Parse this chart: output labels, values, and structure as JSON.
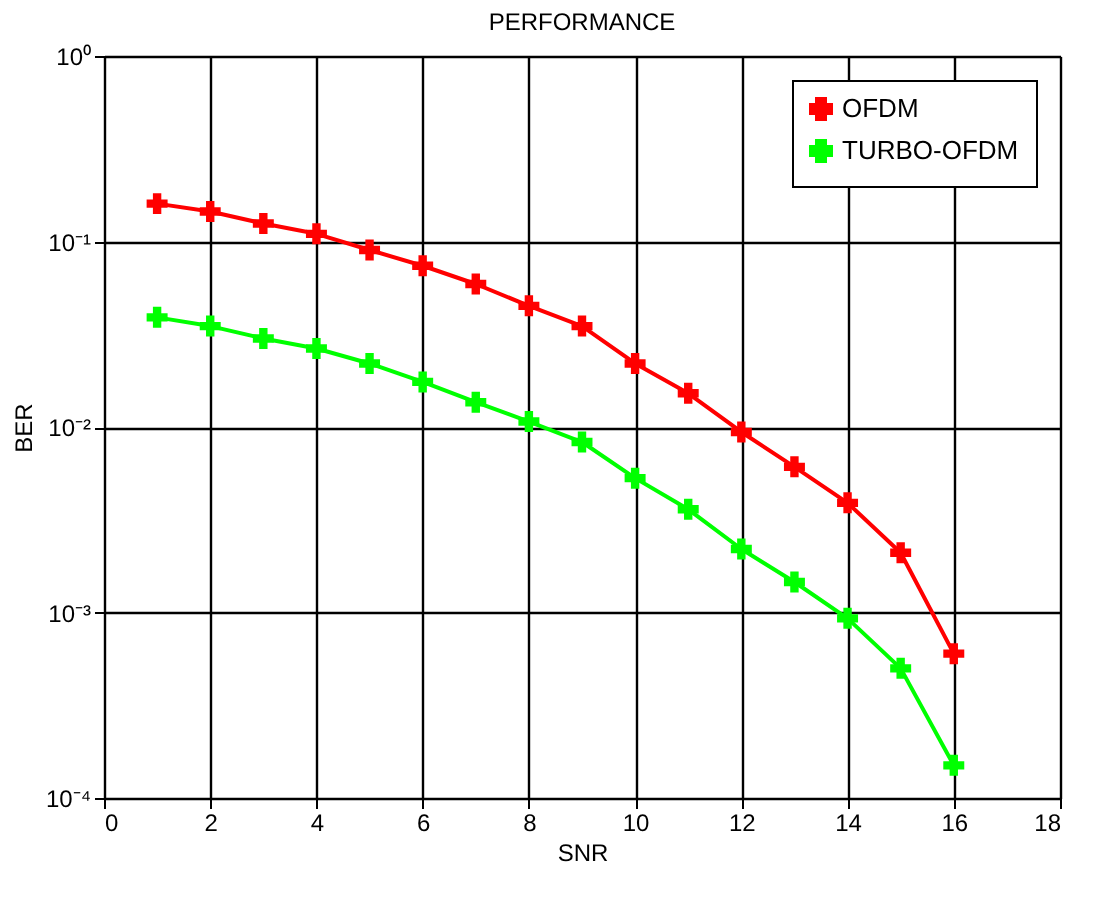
{
  "chart_data": {
    "type": "line",
    "title": "PERFORMANCE",
    "xlabel": "SNR",
    "ylabel": "BER",
    "x": [
      1,
      2,
      3,
      4,
      5,
      6,
      7,
      8,
      9,
      10,
      11,
      12,
      13,
      14,
      15,
      16
    ],
    "series": [
      {
        "name": "OFDM",
        "color": "#ff0000",
        "values": [
          0.16,
          0.145,
          0.125,
          0.11,
          0.09,
          0.074,
          0.059,
          0.045,
          0.035,
          0.022,
          0.0152,
          0.0094,
          0.0061,
          0.0039,
          0.0021,
          0.0006
        ]
      },
      {
        "name": "TURBO-OFDM",
        "color": "#00ff00",
        "values": [
          0.039,
          0.035,
          0.03,
          0.0265,
          0.022,
          0.0175,
          0.0136,
          0.0107,
          0.0083,
          0.0053,
          0.0036,
          0.0022,
          0.00146,
          0.00093,
          0.0005,
          0.00015
        ]
      }
    ],
    "xlim": [
      0,
      18
    ],
    "xticks": [
      0,
      2,
      4,
      6,
      8,
      10,
      12,
      14,
      16,
      18
    ],
    "ylim": [
      0.0001,
      1
    ],
    "yticks": [
      {
        "value": 0.0001,
        "label": "10⁻⁴"
      },
      {
        "value": 0.001,
        "label": "10⁻³"
      },
      {
        "value": 0.01,
        "label": "10⁻²"
      },
      {
        "value": 0.1,
        "label": "10⁻¹"
      },
      {
        "value": 1,
        "label": "10⁰"
      }
    ],
    "log": "y",
    "grid": true,
    "legend": "top right",
    "marker": "cross",
    "line_style": "solid"
  }
}
